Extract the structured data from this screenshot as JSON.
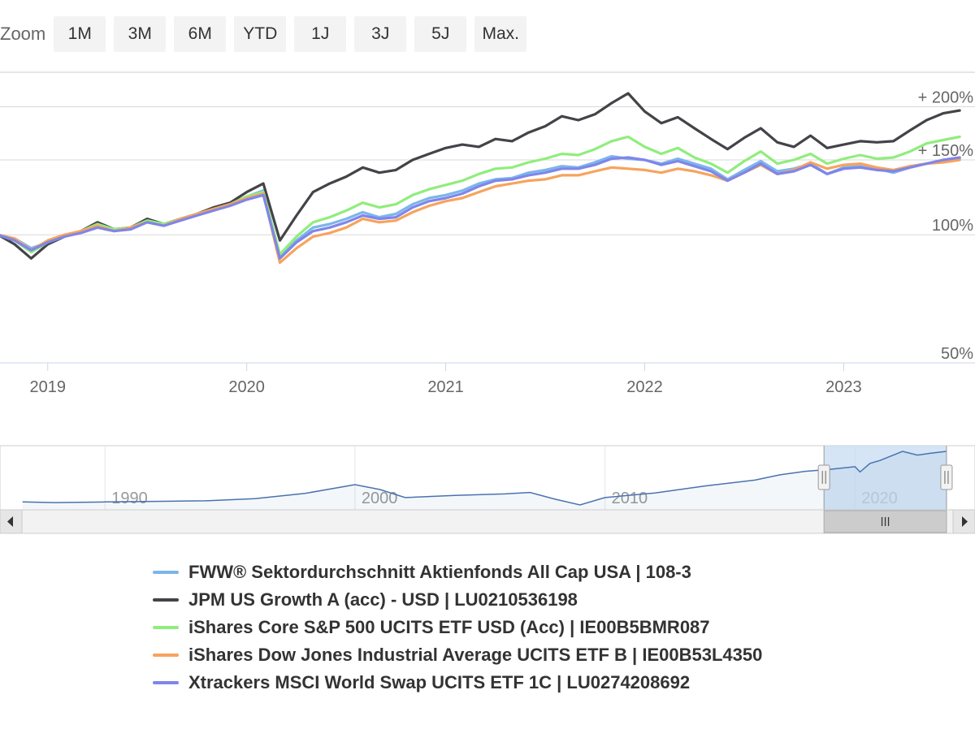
{
  "zoom": {
    "label": "Zoom",
    "buttons": [
      "1M",
      "3M",
      "6M",
      "YTD",
      "1J",
      "3J",
      "5J",
      "Max."
    ]
  },
  "chart_data": {
    "type": "line",
    "y_scale": "log",
    "x_range": [
      2018.76,
      2023.66
    ],
    "ylim": [
      50,
      240
    ],
    "y_ticks": [
      {
        "value": 50,
        "label": "50%"
      },
      {
        "value": 100,
        "label": "100%"
      },
      {
        "value": 150,
        "label": "+ 150%"
      },
      {
        "value": 200,
        "label": "+ 200%"
      }
    ],
    "x_ticks": [
      {
        "value": 2019,
        "label": "2019"
      },
      {
        "value": 2020,
        "label": "2020"
      },
      {
        "value": 2021,
        "label": "2021"
      },
      {
        "value": 2022,
        "label": "2022"
      },
      {
        "value": 2023,
        "label": "2023"
      }
    ],
    "x_dates": [
      "2018-10",
      "2018-11",
      "2018-12",
      "2019-01",
      "2019-02",
      "2019-03",
      "2019-04",
      "2019-05",
      "2019-06",
      "2019-07",
      "2019-08",
      "2019-09",
      "2019-10",
      "2019-11",
      "2019-12",
      "2020-01",
      "2020-02",
      "2020-03",
      "2020-04",
      "2020-05",
      "2020-06",
      "2020-07",
      "2020-08",
      "2020-09",
      "2020-10",
      "2020-11",
      "2020-12",
      "2021-01",
      "2021-02",
      "2021-03",
      "2021-04",
      "2021-05",
      "2021-06",
      "2021-07",
      "2021-08",
      "2021-09",
      "2021-10",
      "2021-11",
      "2021-12",
      "2022-01",
      "2022-02",
      "2022-03",
      "2022-04",
      "2022-05",
      "2022-06",
      "2022-07",
      "2022-08",
      "2022-09",
      "2022-10",
      "2022-11",
      "2022-12",
      "2023-01",
      "2023-02",
      "2023-03",
      "2023-04",
      "2023-05",
      "2023-06",
      "2023-07",
      "2023-08"
    ],
    "series": [
      {
        "name": "FWW® Sektordurchschnitt Aktienfonds All Cap USA | 108-3",
        "color": "#7cb5ec",
        "values": [
          100,
          98,
          93,
          96,
          99,
          102,
          106,
          103,
          104,
          108,
          106,
          109,
          112,
          115,
          118,
          123,
          127,
          89,
          97,
          104,
          106,
          109,
          113,
          110,
          112,
          118,
          122,
          124,
          127,
          132,
          135,
          136,
          140,
          142,
          145,
          144,
          148,
          153,
          151,
          150,
          147,
          151,
          147,
          143,
          135,
          142,
          149,
          141,
          143,
          147,
          139,
          144,
          145,
          143,
          140,
          144,
          147,
          150,
          151
        ]
      },
      {
        "name": "JPM US Growth A (acc) - USD | LU0210536198",
        "color": "#434348",
        "values": [
          100,
          95,
          88,
          95,
          99,
          102,
          107,
          103,
          104,
          109,
          106,
          109,
          112,
          116,
          119,
          126,
          132,
          97,
          111,
          126,
          132,
          137,
          144,
          140,
          142,
          150,
          155,
          160,
          163,
          161,
          168,
          166,
          174,
          180,
          190,
          186,
          192,
          204,
          215,
          195,
          183,
          189,
          178,
          168,
          159,
          169,
          178,
          165,
          161,
          171,
          160,
          163,
          166,
          165,
          166,
          176,
          186,
          193,
          196
        ]
      },
      {
        "name": "iShares Core S&P 500 UCITS ETF USD (Acc) | IE00B5BMR087",
        "color": "#90ed7d",
        "values": [
          100,
          97,
          91,
          96,
          99,
          102,
          106,
          103,
          104,
          108,
          106,
          109,
          112,
          115,
          118,
          123,
          126,
          90,
          99,
          107,
          110,
          114,
          119,
          116,
          118,
          124,
          128,
          131,
          134,
          139,
          143,
          144,
          148,
          151,
          155,
          154,
          159,
          166,
          170,
          161,
          155,
          160,
          152,
          147,
          140,
          149,
          157,
          147,
          150,
          155,
          147,
          151,
          154,
          151,
          152,
          157,
          164,
          167,
          170
        ]
      },
      {
        "name": "iShares Dow Jones Industrial Average UCITS ETF B | IE00B53L4350",
        "color": "#f7a35c",
        "values": [
          100,
          98,
          92,
          97,
          100,
          102,
          105,
          102,
          104,
          107,
          105,
          109,
          112,
          115,
          118,
          122,
          125,
          86,
          93,
          99,
          101,
          104,
          109,
          107,
          108,
          113,
          117,
          120,
          122,
          126,
          130,
          132,
          134,
          135,
          138,
          138,
          141,
          144,
          143,
          142,
          140,
          143,
          141,
          138,
          134,
          140,
          146,
          139,
          142,
          148,
          143,
          146,
          147,
          144,
          142,
          145,
          147,
          148,
          150
        ]
      },
      {
        "name": "Xtrackers MSCI World Swap UCITS ETF 1C | LU0274208692",
        "color": "#8085e9",
        "values": [
          100,
          97,
          92,
          96,
          99,
          101,
          104,
          102,
          103,
          107,
          105,
          108,
          111,
          114,
          117,
          121,
          124,
          88,
          96,
          102,
          104,
          107,
          111,
          109,
          110,
          116,
          120,
          122,
          125,
          130,
          134,
          135,
          138,
          140,
          143,
          143,
          146,
          151,
          152,
          150,
          146,
          149,
          145,
          141,
          134,
          140,
          147,
          139,
          141,
          146,
          139,
          143,
          144,
          142,
          141,
          144,
          147,
          150,
          152
        ]
      }
    ]
  },
  "navigator": {
    "x_ticks": [
      {
        "value": 1990,
        "label": "1990"
      },
      {
        "value": 2000,
        "label": "2000"
      },
      {
        "value": 2010,
        "label": "2010"
      },
      {
        "value": 2020,
        "label": "2020"
      }
    ],
    "x_range": [
      1985.8,
      2024.8
    ],
    "selection": [
      2018.76,
      2023.66
    ],
    "values": [
      [
        1986.7,
        100
      ],
      [
        1988,
        99
      ],
      [
        1990,
        100
      ],
      [
        1992,
        101
      ],
      [
        1994,
        102
      ],
      [
        1996,
        106
      ],
      [
        1998,
        116
      ],
      [
        2000,
        135
      ],
      [
        2001,
        124
      ],
      [
        2002,
        108
      ],
      [
        2004,
        112
      ],
      [
        2006,
        115
      ],
      [
        2007,
        118
      ],
      [
        2008,
        105
      ],
      [
        2009,
        95
      ],
      [
        2010,
        108
      ],
      [
        2012,
        117
      ],
      [
        2014,
        132
      ],
      [
        2016,
        146
      ],
      [
        2017,
        160
      ],
      [
        2018,
        170
      ],
      [
        2019,
        176
      ],
      [
        2020,
        184
      ],
      [
        2020.2,
        168
      ],
      [
        2020.6,
        195
      ],
      [
        2021,
        205
      ],
      [
        2021.9,
        240
      ],
      [
        2022.5,
        225
      ],
      [
        2023,
        232
      ],
      [
        2023.66,
        240
      ]
    ]
  },
  "legend_items": [
    "FWW® Sektordurchschnitt Aktienfonds All Cap USA | 108-3",
    "JPM US Growth A (acc) - USD | LU0210536198",
    "iShares Core S&P 500 UCITS ETF USD (Acc) | IE00B5BMR087",
    "iShares Dow Jones Industrial Average UCITS ETF B | IE00B53L4350",
    "Xtrackers MSCI World Swap UCITS ETF 1C | LU0274208692"
  ],
  "colors": {
    "series": [
      "#7cb5ec",
      "#434348",
      "#90ed7d",
      "#f7a35c",
      "#8085e9"
    ],
    "navigator_line": "#4a72b0",
    "navigator_mask": "#c7dcf1",
    "gridline": "#d8d8d8",
    "axis_label": "#666666"
  }
}
